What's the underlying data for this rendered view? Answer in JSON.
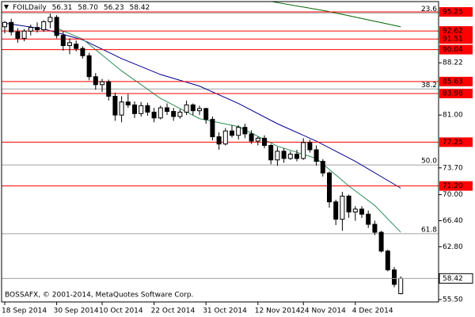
{
  "chart_data": {
    "type": "candlestick",
    "title": "FOILDaily",
    "last_labels": [
      "56.31",
      "58.70",
      "56.23",
      "58.42"
    ],
    "footer": "BOSSAFX, © 2001-2014, MetaQuotes Software Corp.",
    "categories": [
      "18 Sep 2014",
      null,
      null,
      null,
      null,
      null,
      null,
      null,
      "30 Sep 2014",
      null,
      null,
      null,
      null,
      null,
      null,
      "10 Oct 2014",
      null,
      null,
      null,
      null,
      null,
      null,
      null,
      "22 Oct 2014",
      null,
      null,
      null,
      null,
      null,
      null,
      null,
      "31 Oct 2014",
      null,
      null,
      null,
      null,
      null,
      null,
      null,
      "12 Nov 2014",
      null,
      null,
      null,
      null,
      null,
      null,
      "24 Nov 2014",
      null,
      null,
      null,
      null,
      null,
      null,
      null,
      "4 Dec 2014",
      null,
      null,
      null,
      null,
      null,
      null,
      null
    ],
    "open": [
      93.2,
      93.8,
      92.5,
      91.6,
      92.6,
      93.1,
      92.8,
      93.9,
      94.5,
      92.0,
      90.6,
      90.8,
      90.2,
      89.2,
      86.3,
      85.2,
      85.6,
      83.6,
      81.0,
      82.8,
      82.4,
      81.2,
      82.3,
      81.4,
      80.6,
      82.0,
      81.5,
      80.8,
      81.4,
      82.4,
      81.6,
      81.9,
      80.4,
      78.0,
      77.0,
      78.8,
      78.2,
      79.3,
      78.4,
      77.4,
      77.8,
      76.8,
      74.8,
      76.0,
      75.0,
      75.6,
      75.0,
      77.2,
      76.2,
      74.6,
      73.0,
      69.0,
      66.6,
      69.8,
      67.6,
      68.0,
      67.3,
      65.9,
      64.8,
      62.2,
      59.6,
      56.31
    ],
    "high": [
      94.0,
      94.3,
      93.0,
      92.9,
      93.5,
      93.8,
      94.1,
      95.0,
      94.8,
      92.6,
      91.6,
      91.3,
      90.5,
      89.6,
      86.8,
      86.0,
      85.9,
      84.1,
      83.6,
      83.9,
      82.9,
      82.8,
      82.7,
      82.0,
      82.3,
      82.6,
      82.0,
      81.8,
      83.0,
      82.6,
      82.3,
      82.0,
      80.8,
      78.6,
      79.2,
      79.6,
      79.6,
      79.8,
      78.9,
      78.0,
      78.2,
      77.0,
      76.6,
      76.4,
      76.0,
      76.2,
      77.8,
      77.6,
      76.8,
      74.9,
      73.2,
      69.3,
      70.4,
      70.0,
      68.4,
      68.4,
      67.8,
      66.4,
      65.0,
      62.4,
      60.0,
      58.7
    ],
    "low": [
      92.3,
      92.0,
      91.0,
      91.2,
      92.0,
      92.4,
      92.5,
      93.0,
      91.6,
      89.9,
      89.4,
      89.8,
      88.8,
      85.8,
      84.5,
      84.2,
      83.0,
      80.2,
      80.0,
      82.0,
      80.6,
      80.8,
      80.9,
      80.0,
      80.4,
      81.0,
      80.2,
      80.5,
      81.0,
      81.0,
      81.0,
      79.8,
      77.5,
      76.2,
      76.8,
      77.9,
      77.6,
      77.8,
      77.0,
      76.8,
      76.4,
      74.2,
      74.0,
      74.4,
      74.8,
      74.6,
      74.8,
      75.8,
      74.0,
      72.5,
      68.2,
      65.8,
      65.0,
      66.8,
      66.4,
      66.8,
      65.4,
      64.4,
      62.0,
      59.4,
      57.2,
      56.23
    ],
    "close": [
      93.8,
      92.5,
      91.6,
      92.6,
      93.1,
      92.8,
      93.9,
      94.5,
      92.0,
      90.6,
      91.0,
      90.2,
      89.2,
      86.3,
      85.2,
      85.6,
      83.6,
      81.0,
      82.8,
      82.4,
      81.2,
      82.3,
      81.4,
      80.6,
      82.0,
      81.5,
      80.8,
      81.4,
      82.4,
      81.6,
      81.9,
      80.4,
      78.0,
      77.0,
      78.8,
      78.2,
      79.3,
      78.4,
      77.4,
      77.8,
      76.8,
      74.8,
      76.0,
      75.0,
      75.6,
      75.0,
      77.2,
      76.2,
      74.6,
      73.0,
      69.0,
      66.6,
      69.8,
      67.6,
      68.0,
      67.3,
      65.9,
      64.8,
      62.2,
      59.6,
      57.6,
      58.42
    ],
    "up_color": "#ffffff",
    "down_color": "#000000",
    "ylim": [
      55.17,
      96.68
    ],
    "yticks": [
      88.22,
      {
        "value": 81,
        "label": "81.00"
      },
      {
        "value": 73.7,
        "label": "73.70"
      },
      {
        "value": 70,
        "label": "70.00"
      },
      {
        "value": 66.4,
        "label": "66.40"
      },
      {
        "value": 62.8,
        "label": "62.80"
      },
      {
        "value": 55.5,
        "label": "55.50"
      }
    ],
    "levels": {
      "color": "#ff0000",
      "values": [
        95.25,
        92.62,
        91.51,
        90.04,
        85.63,
        83.98,
        77.25,
        {
          "value": 71.2,
          "label": "71.20"
        }
      ]
    },
    "fibo": {
      "color": "#a0a0a0",
      "levels": [
        {
          "value": 95.1,
          "label": "23.6"
        },
        {
          "value": 84.6,
          "label": "38.2"
        },
        {
          "value": 74.1,
          "label": "50.0"
        },
        {
          "value": 64.6,
          "label": "61.8"
        }
      ]
    },
    "lines": [
      {
        "color": "#00008b",
        "x": [
          0,
          6,
          12,
          18,
          24,
          30,
          36,
          42,
          48,
          54,
          61
        ],
        "values": [
          93.7,
          92.9,
          91.4,
          88.8,
          86.6,
          85.0,
          82.6,
          79.8,
          77.4,
          74.6,
          70.9
        ]
      },
      {
        "color": "#2e8b57",
        "x": [
          8,
          12,
          18,
          24,
          30,
          36,
          42,
          48,
          53,
          57,
          61
        ],
        "values": [
          93.0,
          91.5,
          87.1,
          83.3,
          80.5,
          79.4,
          76.7,
          75.0,
          71.2,
          68.5,
          64.8
        ]
      },
      {
        "color": "#006400",
        "x": [
          41,
          50,
          61
        ],
        "values": [
          96.7,
          95.3,
          93.2
        ]
      }
    ]
  }
}
